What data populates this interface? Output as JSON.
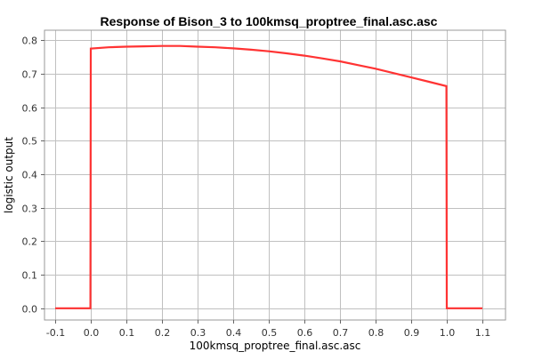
{
  "chart_data": {
    "type": "line",
    "title": "Response of Bison_3 to 100kmsq_proptree_final.asc.asc",
    "xlabel": "100kmsq_proptree_final.asc.asc",
    "ylabel": "logistic output",
    "xlim": [
      -0.13,
      1.165
    ],
    "ylim": [
      -0.035,
      0.83
    ],
    "x_ticks": [
      -0.1,
      0.0,
      0.1,
      0.2,
      0.3,
      0.4,
      0.5,
      0.6,
      0.7,
      0.8,
      0.9,
      1.0,
      1.1
    ],
    "x_tick_labels": [
      "-0.1",
      "0.0",
      "0.1",
      "0.2",
      "0.3",
      "0.4",
      "0.5",
      "0.6",
      "0.7",
      "0.8",
      "0.9",
      "1.0",
      "1.1"
    ],
    "y_ticks": [
      0.0,
      0.1,
      0.2,
      0.3,
      0.4,
      0.5,
      0.6,
      0.7,
      0.8
    ],
    "y_tick_labels": [
      "0.0",
      "0.1",
      "0.2",
      "0.3",
      "0.4",
      "0.5",
      "0.6",
      "0.7",
      "0.8"
    ],
    "grid": true,
    "series_color": "#ff3333",
    "grid_color": "#c0c0c0",
    "series": [
      {
        "x": [
          -0.1,
          -0.001,
          0.0,
          0.05,
          0.1,
          0.15,
          0.2,
          0.25,
          0.3,
          0.35,
          0.4,
          0.45,
          0.5,
          0.55,
          0.6,
          0.65,
          0.7,
          0.75,
          0.8,
          0.85,
          0.9,
          0.95,
          0.999,
          1.0,
          1.1
        ],
        "y": [
          0.0,
          0.0,
          0.775,
          0.779,
          0.781,
          0.782,
          0.783,
          0.783,
          0.781,
          0.779,
          0.776,
          0.772,
          0.767,
          0.761,
          0.754,
          0.746,
          0.737,
          0.726,
          0.715,
          0.702,
          0.689,
          0.676,
          0.663,
          0.0,
          0.0
        ]
      }
    ]
  }
}
